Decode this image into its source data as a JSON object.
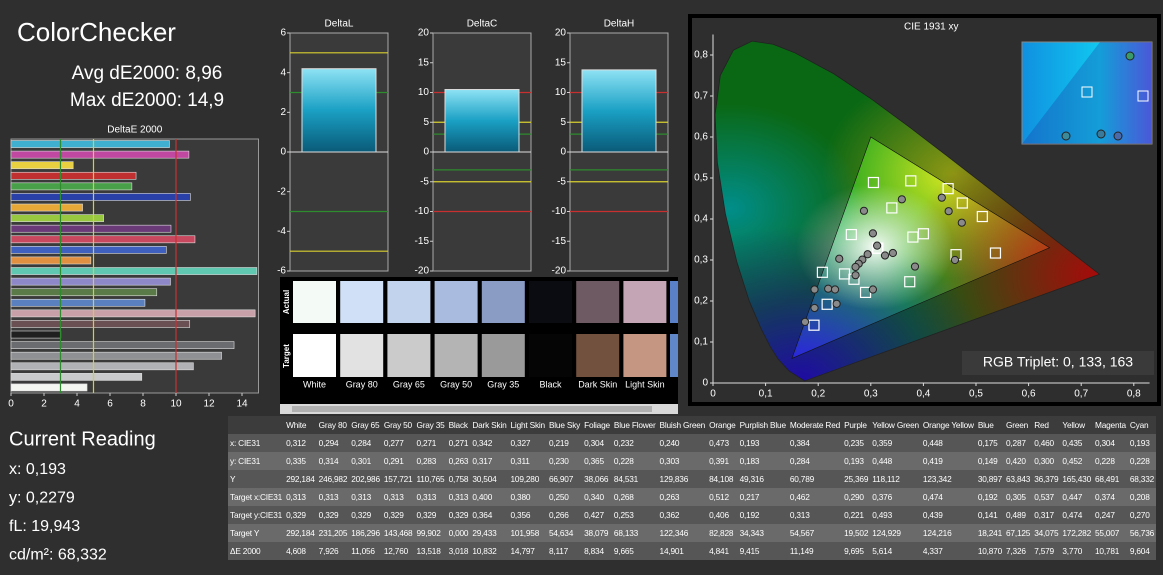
{
  "header": {
    "title": "ColorChecker",
    "avg": "Avg dE2000: 8,96",
    "max": "Max dE2000: 14,9"
  },
  "reading": {
    "title": "Current Reading",
    "lines": [
      "x: 0,193",
      "y: 0,2279",
      "fL: 19,943",
      "cd/m²: 68,332"
    ]
  },
  "reference_lines": [
    {
      "value": 3,
      "color": "#2e8b2e"
    },
    {
      "value": -3,
      "color": "#2e8b2e"
    },
    {
      "value": 5,
      "color": "#d8d030"
    },
    {
      "value": -5,
      "color": "#d8d030"
    },
    {
      "value": 10,
      "color": "#c83030"
    },
    {
      "value": -10,
      "color": "#c83030"
    }
  ],
  "deltaE": {
    "type": "bar",
    "title": "DeltaE 2000",
    "xlim": [
      0,
      15
    ],
    "xticks": [
      0,
      2,
      4,
      6,
      8,
      10,
      12,
      14
    ],
    "values": [
      4.608,
      7.926,
      11.056,
      12.76,
      13.518,
      3.018,
      10.832,
      14.797,
      8.117,
      8.834,
      9.665,
      14.901,
      4.841,
      9.415,
      11.149,
      9.695,
      5.614,
      4.337,
      10.87,
      7.326,
      7.579,
      3.77,
      10.781,
      9.604
    ],
    "colors": [
      "#f4f6f2",
      "#c8cacb",
      "#b0b2b5",
      "#8e9093",
      "#6a6c6f",
      "#202020",
      "#6a5052",
      "#c8a0a8",
      "#5a80c0",
      "#5a7a48",
      "#8e88c8",
      "#60c8b0",
      "#e09040",
      "#4060c0",
      "#c84860",
      "#6a3a78",
      "#98c840",
      "#e8a838",
      "#2840a8",
      "#48a048",
      "#c03030",
      "#e8d040",
      "#c048a0",
      "#40b0d0"
    ]
  },
  "deltas": [
    {
      "type": "bar",
      "title": "DeltaL",
      "value": 4.2,
      "ylim": [
        -6,
        6
      ],
      "yticks": [
        -6,
        -4,
        -2,
        0,
        2,
        4,
        6
      ]
    },
    {
      "type": "bar",
      "title": "DeltaC",
      "value": 10.5,
      "ylim": [
        -20,
        20
      ],
      "yticks": [
        -20,
        -15,
        -10,
        -5,
        0,
        5,
        10,
        15,
        20
      ]
    },
    {
      "type": "bar",
      "title": "DeltaH",
      "value": 13.8,
      "ylim": [
        -20,
        20
      ],
      "yticks": [
        -20,
        -15,
        -10,
        -5,
        0,
        5,
        10,
        15,
        20
      ]
    }
  ],
  "swatches": {
    "row_labels": [
      "Actual",
      "Target"
    ],
    "items": [
      {
        "label": "White",
        "actual": "#f4fbf6",
        "target": "#ffffff"
      },
      {
        "label": "Gray 80",
        "actual": "#d0e0f6",
        "target": "#e2e2e2"
      },
      {
        "label": "Gray 65",
        "actual": "#c2d3ee",
        "target": "#cbcbcb"
      },
      {
        "label": "Gray 50",
        "actual": "#aabbe0",
        "target": "#b4b4b4"
      },
      {
        "label": "Gray 35",
        "actual": "#8a9cc4",
        "target": "#9a9a9a"
      },
      {
        "label": "Black",
        "actual": "#0b0b12",
        "target": "#050505"
      },
      {
        "label": "Dark Skin",
        "actual": "#6e5a62",
        "target": "#72513f"
      },
      {
        "label": "Light Skin",
        "actual": "#c4a5b5",
        "target": "#c59782"
      }
    ]
  },
  "cie": {
    "type": "scatter",
    "title": "CIE 1931 xy",
    "xlim": [
      0,
      0.83
    ],
    "ylim": [
      0,
      0.85
    ],
    "xticks": [
      0,
      {
        "value": 0.1,
        "label": "0,1"
      },
      {
        "value": 0.2,
        "label": "0,2"
      },
      {
        "value": 0.3,
        "label": "0,3"
      },
      {
        "value": 0.4,
        "label": "0,4"
      },
      {
        "value": 0.5,
        "label": "0,5"
      },
      {
        "value": 0.6,
        "label": "0,6"
      },
      {
        "value": 0.7,
        "label": "0,7"
      },
      {
        "value": 0.8,
        "label": "0,8"
      }
    ],
    "yticks": [
      0,
      {
        "value": 0.1,
        "label": "0,1"
      },
      {
        "value": 0.2,
        "label": "0,2"
      },
      {
        "value": 0.3,
        "label": "0,3"
      },
      {
        "value": 0.4,
        "label": "0,4"
      },
      {
        "value": 0.5,
        "label": "0,5"
      },
      {
        "value": 0.6,
        "label": "0,6"
      },
      {
        "value": 0.7,
        "label": "0,7"
      },
      {
        "value": 0.8,
        "label": "0,8"
      }
    ],
    "locus": {
      "x": [
        0.1741,
        0.144,
        0.1241,
        0.1096,
        0.0913,
        0.0687,
        0.0454,
        0.0235,
        0.0082,
        0.0039,
        0.0139,
        0.0389,
        0.0743,
        0.1142,
        0.1547,
        0.2296,
        0.3016,
        0.3731,
        0.4441,
        0.5125,
        0.5752,
        0.627,
        0.6915,
        0.7347
      ],
      "y": [
        0.005,
        0.0297,
        0.0578,
        0.0868,
        0.1327,
        0.2007,
        0.295,
        0.4127,
        0.5384,
        0.6548,
        0.7502,
        0.812,
        0.8338,
        0.8262,
        0.8059,
        0.7543,
        0.6923,
        0.6245,
        0.5547,
        0.4866,
        0.4242,
        0.3725,
        0.3083,
        0.2653
      ]
    },
    "gamut": {
      "x": [
        0.64,
        0.3,
        0.15
      ],
      "y": [
        0.33,
        0.6,
        0.06
      ]
    },
    "measured": {
      "x": [
        0.312,
        0.294,
        0.284,
        0.277,
        0.271,
        0.271,
        0.342,
        0.327,
        0.219,
        0.304,
        0.232,
        0.24,
        0.473,
        0.193,
        0.384,
        0.235,
        0.359,
        0.448,
        0.175,
        0.287,
        0.46,
        0.435,
        0.304,
        0.193
      ],
      "y": [
        0.335,
        0.314,
        0.301,
        0.291,
        0.283,
        0.263,
        0.317,
        0.311,
        0.23,
        0.365,
        0.228,
        0.303,
        0.391,
        0.183,
        0.284,
        0.193,
        0.448,
        0.419,
        0.149,
        0.42,
        0.3,
        0.452,
        0.228,
        0.228
      ]
    },
    "targets": {
      "x": [
        0.313,
        0.313,
        0.313,
        0.313,
        0.313,
        0.313,
        0.4,
        0.38,
        0.25,
        0.34,
        0.268,
        0.263,
        0.512,
        0.217,
        0.462,
        0.29,
        0.376,
        0.474,
        0.192,
        0.305,
        0.537,
        0.447,
        0.374,
        0.208
      ],
      "y": [
        0.329,
        0.329,
        0.329,
        0.329,
        0.329,
        0.329,
        0.364,
        0.356,
        0.266,
        0.427,
        0.253,
        0.362,
        0.406,
        0.192,
        0.313,
        0.221,
        0.493,
        0.439,
        0.141,
        0.489,
        0.317,
        0.474,
        0.247,
        0.27
      ]
    },
    "triplet": "RGB Triplet: 0, 133, 163"
  },
  "table": {
    "columns": [
      "White",
      "Gray 80",
      "Gray 65",
      "Gray 50",
      "Gray 35",
      "Black",
      "Dark Skin",
      "Light Skin",
      "Blue Sky",
      "Foliage",
      "Blue Flower",
      "Bluish Green",
      "Orange",
      "Purplish Blue",
      "Moderate Red",
      "Purple",
      "Yellow Green",
      "Orange Yellow",
      "Blue",
      "Green",
      "Red",
      "Yellow",
      "Magenta",
      "Cyan"
    ],
    "rows": [
      {
        "label": "x: CIE31",
        "cells": [
          "0,312",
          "0,294",
          "0,284",
          "0,277",
          "0,271",
          "0,271",
          "0,342",
          "0,327",
          "0,219",
          "0,304",
          "0,232",
          "0,240",
          "0,473",
          "0,193",
          "0,384",
          "0,235",
          "0,359",
          "0,448",
          "0,175",
          "0,287",
          "0,460",
          "0,435",
          "0,304",
          "0,193"
        ]
      },
      {
        "label": "y: CIE31",
        "cells": [
          "0,335",
          "0,314",
          "0,301",
          "0,291",
          "0,283",
          "0,263",
          "0,317",
          "0,311",
          "0,230",
          "0,365",
          "0,228",
          "0,303",
          "0,391",
          "0,183",
          "0,284",
          "0,193",
          "0,448",
          "0,419",
          "0,149",
          "0,420",
          "0,300",
          "0,452",
          "0,228",
          "0,228"
        ]
      },
      {
        "label": "Y",
        "cells": [
          "292,184",
          "246,982",
          "202,986",
          "157,721",
          "110,765",
          "0,758",
          "30,504",
          "109,280",
          "66,907",
          "38,066",
          "84,531",
          "129,836",
          "84,108",
          "49,316",
          "60,789",
          "25,369",
          "118,112",
          "123,342",
          "30,897",
          "63,843",
          "36,379",
          "165,430",
          "68,491",
          "68,332"
        ]
      },
      {
        "label": "Target x:CIE31",
        "cells": [
          "0,313",
          "0,313",
          "0,313",
          "0,313",
          "0,313",
          "0,313",
          "0,400",
          "0,380",
          "0,250",
          "0,340",
          "0,268",
          "0,263",
          "0,512",
          "0,217",
          "0,462",
          "0,290",
          "0,376",
          "0,474",
          "0,192",
          "0,305",
          "0,537",
          "0,447",
          "0,374",
          "0,208"
        ]
      },
      {
        "label": "Target y:CIE31",
        "cells": [
          "0,329",
          "0,329",
          "0,329",
          "0,329",
          "0,329",
          "0,329",
          "0,364",
          "0,356",
          "0,266",
          "0,427",
          "0,253",
          "0,362",
          "0,406",
          "0,192",
          "0,313",
          "0,221",
          "0,493",
          "0,439",
          "0,141",
          "0,489",
          "0,317",
          "0,474",
          "0,247",
          "0,270"
        ]
      },
      {
        "label": "Target Y",
        "cells": [
          "292,184",
          "231,205",
          "186,296",
          "143,468",
          "99,902",
          "0,000",
          "29,433",
          "101,958",
          "54,634",
          "38,079",
          "68,133",
          "122,346",
          "82,828",
          "34,343",
          "54,567",
          "19,502",
          "124,929",
          "124,216",
          "18,241",
          "67,125",
          "34,075",
          "172,282",
          "55,007",
          "56,736"
        ]
      },
      {
        "label": "ΔE 2000",
        "cells": [
          "4,608",
          "7,926",
          "11,056",
          "12,760",
          "13,518",
          "3,018",
          "10,832",
          "14,797",
          "8,117",
          "8,834",
          "9,665",
          "14,901",
          "4,841",
          "9,415",
          "11,149",
          "9,695",
          "5,614",
          "4,337",
          "10,870",
          "7,326",
          "7,579",
          "3,770",
          "10,781",
          "9,604"
        ]
      }
    ]
  }
}
